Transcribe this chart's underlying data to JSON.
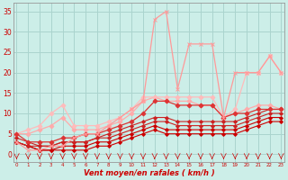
{
  "x": [
    0,
    1,
    2,
    3,
    4,
    5,
    6,
    7,
    8,
    9,
    10,
    11,
    12,
    13,
    14,
    15,
    16,
    17,
    18,
    19,
    20,
    21,
    22,
    23
  ],
  "xlabel": "Vent moyen/en rafales ( km/h )",
  "ylabel_ticks": [
    0,
    5,
    10,
    15,
    20,
    25,
    30,
    35
  ],
  "bg_color": "#cceee8",
  "grid_color": "#aad4ce",
  "lines": [
    {
      "y": [
        3,
        2,
        1,
        1,
        1,
        1,
        1,
        2,
        2,
        3,
        4,
        5,
        6,
        5,
        5,
        5,
        5,
        5,
        5,
        5,
        6,
        7,
        8,
        8
      ],
      "color": "#cc0000",
      "marker": "D",
      "lw": 0.8,
      "ms": 2.0,
      "zorder": 5
    },
    {
      "y": [
        3,
        2,
        1,
        1,
        2,
        2,
        2,
        3,
        3,
        4,
        5,
        6,
        7,
        6,
        6,
        6,
        6,
        6,
        6,
        6,
        7,
        8,
        9,
        9
      ],
      "color": "#cc0000",
      "marker": "D",
      "lw": 0.8,
      "ms": 2.0,
      "zorder": 5
    },
    {
      "y": [
        3,
        2,
        2,
        2,
        3,
        3,
        3,
        4,
        4,
        5,
        6,
        7,
        8,
        8,
        7,
        7,
        7,
        7,
        7,
        7,
        8,
        9,
        10,
        10
      ],
      "color": "#cc2222",
      "marker": "D",
      "lw": 0.8,
      "ms": 2.0,
      "zorder": 5
    },
    {
      "y": [
        4,
        3,
        2,
        2,
        3,
        3,
        3,
        4,
        5,
        6,
        7,
        8,
        9,
        9,
        8,
        8,
        8,
        8,
        8,
        8,
        9,
        10,
        11,
        11
      ],
      "color": "#cc2222",
      "marker": "D",
      "lw": 0.8,
      "ms": 2.0,
      "zorder": 4
    },
    {
      "y": [
        5,
        3,
        3,
        3,
        4,
        4,
        5,
        5,
        6,
        7,
        8,
        10,
        13,
        13,
        12,
        12,
        12,
        12,
        9,
        10,
        10,
        11,
        11,
        11
      ],
      "color": "#dd3333",
      "marker": "D",
      "lw": 0.9,
      "ms": 2.5,
      "zorder": 4
    },
    {
      "y": [
        5,
        5,
        6,
        7,
        9,
        6,
        6,
        6,
        7,
        8,
        10,
        13,
        14,
        13,
        13,
        13,
        12,
        12,
        9,
        10,
        11,
        12,
        12,
        11
      ],
      "color": "#ffaaaa",
      "marker": "D",
      "lw": 0.9,
      "ms": 2.5,
      "zorder": 3
    },
    {
      "y": [
        5,
        6,
        7,
        10,
        12,
        7,
        7,
        7,
        8,
        9,
        11,
        14,
        14,
        14,
        14,
        14,
        14,
        14,
        9,
        11,
        20,
        20,
        24,
        20
      ],
      "color": "#ffbbbb",
      "marker": "D",
      "lw": 0.9,
      "ms": 2.5,
      "zorder": 3
    },
    {
      "y": [
        3,
        1,
        1,
        2,
        2,
        4,
        5,
        5,
        7,
        9,
        11,
        13,
        33,
        35,
        16,
        27,
        27,
        27,
        9,
        20,
        20,
        20,
        24,
        20
      ],
      "color": "#ff9999",
      "marker": "x",
      "lw": 0.9,
      "ms": 3.5,
      "zorder": 6
    }
  ],
  "xlim": [
    -0.3,
    23.3
  ],
  "ylim": [
    -2,
    37
  ],
  "tick_label_color": "#cc0000",
  "axis_color": "#999999"
}
